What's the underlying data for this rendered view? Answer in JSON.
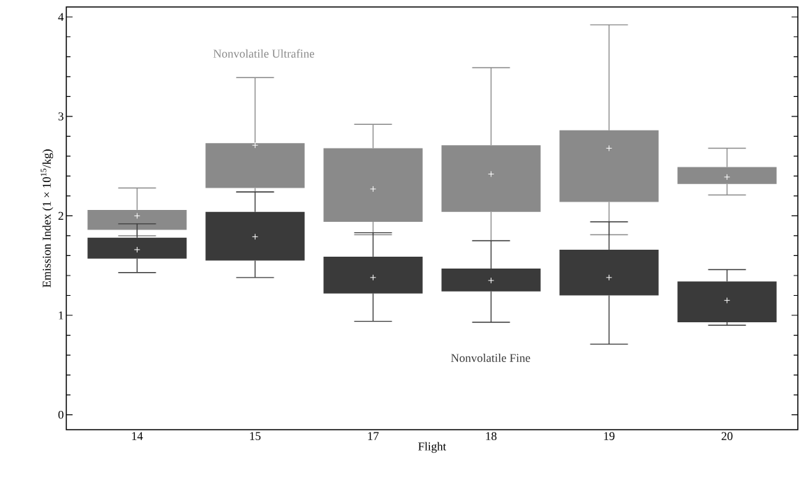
{
  "chart_data": {
    "type": "box",
    "xlabel": "Flight",
    "ylabel": "Emission Index (1 × 10$^{15}$/kg)",
    "categories": [
      "14",
      "15",
      "17",
      "18",
      "19",
      "20"
    ],
    "ylim": [
      -0.15,
      4.1
    ],
    "yticks": [
      0,
      1,
      2,
      3,
      4
    ],
    "grid": false,
    "series": [
      {
        "name": "Nonvolatile Ultrafine",
        "color": "#8a8a8a",
        "boxes": [
          {
            "low": 1.8,
            "q1": 1.86,
            "median": 2.0,
            "q3": 2.06,
            "high": 2.28
          },
          {
            "low": 2.24,
            "q1": 2.28,
            "median": 2.71,
            "q3": 2.73,
            "high": 3.39
          },
          {
            "low": 1.81,
            "q1": 1.94,
            "median": 2.27,
            "q3": 2.68,
            "high": 2.92
          },
          {
            "low": 1.75,
            "q1": 2.04,
            "median": 2.42,
            "q3": 2.71,
            "high": 3.49
          },
          {
            "low": 1.81,
            "q1": 2.14,
            "median": 2.68,
            "q3": 2.86,
            "high": 3.92
          },
          {
            "low": 2.21,
            "q1": 2.32,
            "median": 2.39,
            "q3": 2.49,
            "high": 2.68
          }
        ]
      },
      {
        "name": "Nonvolatile Fine",
        "color": "#3a3a3a",
        "boxes": [
          {
            "low": 1.43,
            "q1": 1.57,
            "median": 1.66,
            "q3": 1.78,
            "high": 1.92
          },
          {
            "low": 1.38,
            "q1": 1.55,
            "median": 1.79,
            "q3": 2.04,
            "high": 2.24
          },
          {
            "low": 0.94,
            "q1": 1.22,
            "median": 1.38,
            "q3": 1.59,
            "high": 1.83
          },
          {
            "low": 0.93,
            "q1": 1.24,
            "median": 1.35,
            "q3": 1.47,
            "high": 1.75
          },
          {
            "low": 0.71,
            "q1": 1.2,
            "median": 1.38,
            "q3": 1.66,
            "high": 1.94
          },
          {
            "low": 0.9,
            "q1": 0.93,
            "median": 1.15,
            "q3": 1.34,
            "high": 1.46
          }
        ]
      }
    ]
  }
}
